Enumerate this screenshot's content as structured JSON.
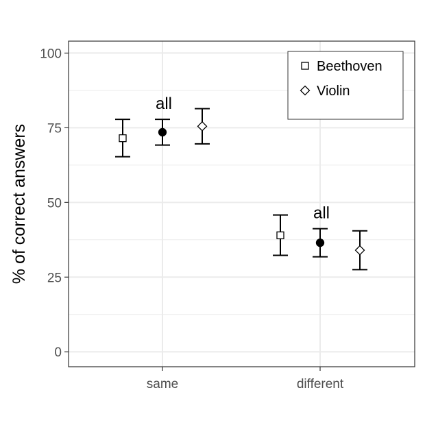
{
  "chart_data": {
    "type": "scatter",
    "ylabel": "% of correct answers",
    "xlabel": "",
    "ylim": [
      -5,
      104
    ],
    "yticks": [
      0,
      25,
      50,
      75,
      100
    ],
    "categories": [
      "same",
      "different"
    ],
    "grid": true,
    "legend_position": "top-right",
    "series": [
      {
        "name": "Beethoven",
        "marker": "square",
        "fill": "#ffffff",
        "values": [
          71.5,
          39.0
        ],
        "lower": [
          65.3,
          32.3
        ],
        "upper": [
          77.8,
          45.8
        ]
      },
      {
        "name": "",
        "marker": "circle",
        "fill": "#000000",
        "values": [
          73.5,
          36.5
        ],
        "lower": [
          69.2,
          31.8
        ],
        "upper": [
          77.8,
          41.2
        ]
      },
      {
        "name": "Violin",
        "marker": "diamond",
        "fill": "#ffffff",
        "values": [
          75.5,
          34.0
        ],
        "lower": [
          69.6,
          27.5
        ],
        "upper": [
          81.4,
          40.5
        ]
      }
    ],
    "annotations": [
      {
        "text": "all",
        "category": "same",
        "series": 1
      },
      {
        "text": "all",
        "category": "different",
        "series": 1
      }
    ],
    "colors": {
      "grid": "#ebebeb",
      "panel_border": "#333333",
      "ink": "#000000",
      "tick_text": "#4d4d4d"
    }
  }
}
